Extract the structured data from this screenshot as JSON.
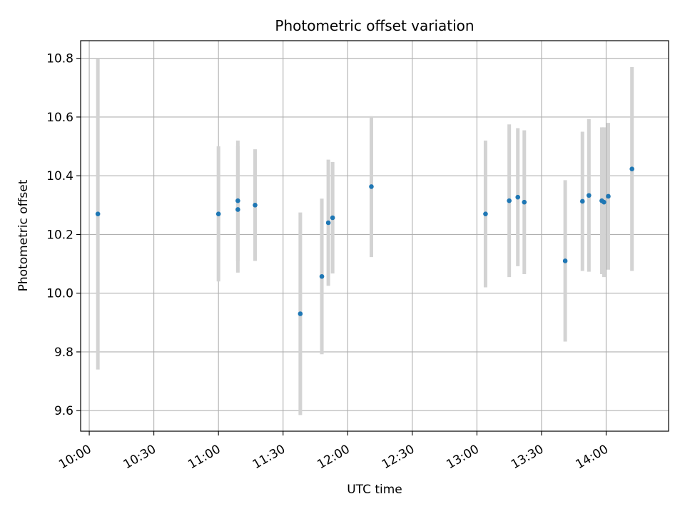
{
  "chart_data": {
    "type": "scatter",
    "title": "Photometric offset variation",
    "xlabel": "UTC time",
    "ylabel": "Photometric offset",
    "x_ticks": [
      "10:00",
      "10:30",
      "11:00",
      "11:30",
      "12:00",
      "12:30",
      "13:00",
      "13:30",
      "14:00"
    ],
    "y_ticks": [
      "9.6",
      "9.8",
      "10.0",
      "10.2",
      "10.4",
      "10.6",
      "10.8"
    ],
    "xlim": [
      "09:56",
      "14:29"
    ],
    "ylim": [
      9.53,
      10.86
    ],
    "grid": true,
    "legend": "none",
    "point_color": "#1f77b4",
    "errorbar_color": "#d3d3d3",
    "points": [
      {
        "x": "10:04",
        "y": 10.27,
        "err": 0.53
      },
      {
        "x": "11:00",
        "y": 10.27,
        "err": 0.23
      },
      {
        "x": "11:09",
        "y": 10.285,
        "err": 0.215
      },
      {
        "x": "11:09",
        "y": 10.315,
        "err": 0.205
      },
      {
        "x": "11:17",
        "y": 10.3,
        "err": 0.19
      },
      {
        "x": "11:38",
        "y": 9.93,
        "err": 0.345
      },
      {
        "x": "11:48",
        "y": 10.057,
        "err": 0.265
      },
      {
        "x": "11:51",
        "y": 10.24,
        "err": 0.215
      },
      {
        "x": "11:53",
        "y": 10.257,
        "err": 0.19
      },
      {
        "x": "12:11",
        "y": 10.363,
        "err": 0.24
      },
      {
        "x": "13:04",
        "y": 10.27,
        "err": 0.25
      },
      {
        "x": "13:15",
        "y": 10.315,
        "err": 0.26
      },
      {
        "x": "13:19",
        "y": 10.327,
        "err": 0.235
      },
      {
        "x": "13:22",
        "y": 10.31,
        "err": 0.245
      },
      {
        "x": "13:41",
        "y": 10.11,
        "err": 0.275
      },
      {
        "x": "13:49",
        "y": 10.313,
        "err": 0.237
      },
      {
        "x": "13:52",
        "y": 10.333,
        "err": 0.26
      },
      {
        "x": "13:58",
        "y": 10.315,
        "err": 0.25
      },
      {
        "x": "13:59",
        "y": 10.31,
        "err": 0.255
      },
      {
        "x": "14:01",
        "y": 10.33,
        "err": 0.25
      },
      {
        "x": "14:12",
        "y": 10.423,
        "err": 0.347
      }
    ]
  }
}
